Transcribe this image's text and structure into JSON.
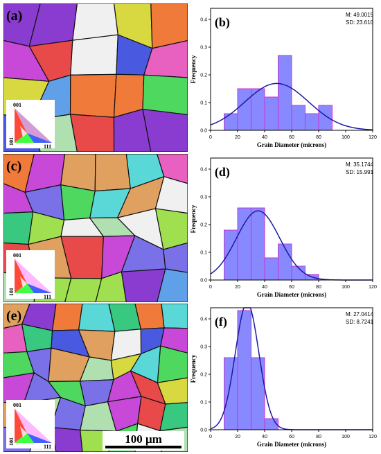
{
  "panels": [
    {
      "label": "(a)"
    },
    {
      "label": "(c)"
    },
    {
      "label": "(e)"
    }
  ],
  "ipf_key": {
    "top": "001",
    "left": "101",
    "right": "111"
  },
  "scale_bar": {
    "label": "100 μm"
  },
  "colors": {
    "bar_fill": "#8888ff",
    "bar_stroke": "#cc33cc",
    "curve": "#1a1aa0"
  },
  "chart_data": [
    {
      "type": "bar",
      "panel_label": "(b)",
      "bin_edges": [
        10,
        20,
        30,
        40,
        50,
        60,
        70,
        80,
        90
      ],
      "values": [
        0.06,
        0.15,
        0.15,
        0.12,
        0.27,
        0.09,
        0.06,
        0.09
      ],
      "mean": 49.0015,
      "sd": 23.61,
      "stats_lines": [
        "M: 49.0015",
        "SD: 23.610"
      ],
      "xlabel": "Grain Diameter (microns)",
      "ylabel": "Frequency",
      "xlim": [
        0,
        120
      ],
      "ylim": [
        0,
        0.44
      ],
      "xticks": [
        0,
        20,
        40,
        60,
        80,
        100,
        120
      ],
      "yticks": [
        0.0,
        0.1,
        0.2,
        0.3,
        0.4
      ]
    },
    {
      "type": "bar",
      "panel_label": "(d)",
      "bin_edges": [
        10,
        20,
        30,
        40,
        50,
        60,
        70,
        80
      ],
      "values": [
        0.18,
        0.26,
        0.26,
        0.08,
        0.13,
        0.05,
        0.02
      ],
      "mean": 35.1744,
      "sd": 15.991,
      "stats_lines": [
        "M: 35.1744",
        "SD: 15.991"
      ],
      "xlabel": "Grain Diameter (microns)",
      "ylabel": "Frequency",
      "xlim": [
        0,
        120
      ],
      "ylim": [
        0,
        0.44
      ],
      "xticks": [
        0,
        20,
        40,
        60,
        80,
        100,
        120
      ],
      "yticks": [
        0.0,
        0.1,
        0.2,
        0.3,
        0.4
      ]
    },
    {
      "type": "bar",
      "panel_label": "(f)",
      "bin_edges": [
        10,
        20,
        30,
        40,
        50
      ],
      "values": [
        0.26,
        0.43,
        0.26,
        0.04
      ],
      "mean": 27.0414,
      "sd": 8.7241,
      "stats_lines": [
        "M: 27.0414",
        "SD: 8.7241"
      ],
      "xlabel": "Grain Diameter (microns)",
      "ylabel": "Frequency",
      "xlim": [
        0,
        120
      ],
      "ylim": [
        0,
        0.44
      ],
      "xticks": [
        0,
        20,
        40,
        60,
        80,
        100,
        120
      ],
      "yticks": [
        0.0,
        0.1,
        0.2,
        0.3,
        0.4
      ]
    }
  ]
}
